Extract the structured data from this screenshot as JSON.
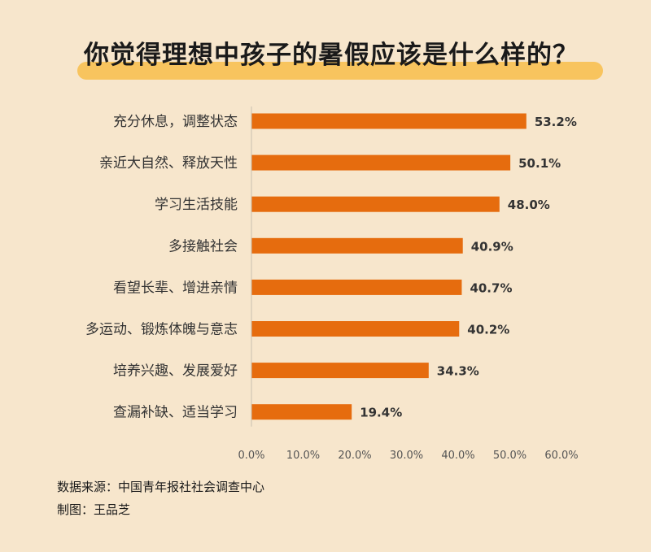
{
  "title": "你觉得理想中孩子的暑假应该是什么样的？",
  "colors": {
    "background": "#f7e6cc",
    "bar": "#e66c0e",
    "highlight": "#f8c45e"
  },
  "chart_data": {
    "type": "bar",
    "orientation": "horizontal",
    "categories": [
      "充分休息，调整状态",
      "亲近大自然、释放天性",
      "学习生活技能",
      "多接触社会",
      "看望长辈、增进亲情",
      "多运动、锻炼体魄与意志",
      "培养兴趣、发展爱好",
      "查漏补缺、适当学习"
    ],
    "values": [
      53.2,
      50.1,
      48.0,
      40.9,
      40.7,
      40.2,
      34.3,
      19.4
    ],
    "value_labels": [
      "53.2%",
      "50.1%",
      "48.0%",
      "40.9%",
      "40.7%",
      "40.2%",
      "34.3%",
      "19.4%"
    ],
    "xlim": [
      0,
      60
    ],
    "ticks": [
      0,
      10,
      20,
      30,
      40,
      50,
      60
    ],
    "tick_labels": [
      "0.0%",
      "10.0%",
      "20.0%",
      "30.0%",
      "40.0%",
      "50.0%",
      "60.0%"
    ],
    "grid": false,
    "legend": "none"
  },
  "footer": {
    "source": "数据来源：中国青年报社社会调查中心",
    "credit": "制图：王品芝"
  }
}
